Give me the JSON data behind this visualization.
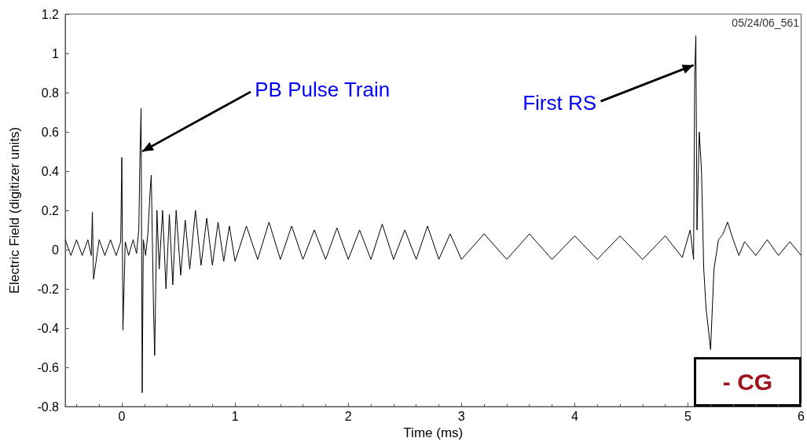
{
  "chart_data": {
    "type": "line",
    "xlabel": "Time (ms)",
    "ylabel": "Electric Field (digitizer units)",
    "x": [
      -0.5,
      -0.45,
      -0.4,
      -0.35,
      -0.3,
      -0.27,
      -0.26,
      -0.25,
      -0.2,
      -0.15,
      -0.1,
      -0.05,
      -0.01,
      0,
      0.01,
      0.03,
      0.06,
      0.1,
      0.13,
      0.15,
      0.16,
      0.17,
      0.18,
      0.19,
      0.21,
      0.23,
      0.25,
      0.26,
      0.28,
      0.29,
      0.31,
      0.33,
      0.36,
      0.39,
      0.42,
      0.45,
      0.48,
      0.52,
      0.56,
      0.6,
      0.65,
      0.7,
      0.75,
      0.8,
      0.85,
      0.9,
      0.95,
      1.0,
      1.1,
      1.2,
      1.3,
      1.4,
      1.5,
      1.6,
      1.7,
      1.8,
      1.9,
      2.0,
      2.1,
      2.2,
      2.3,
      2.4,
      2.5,
      2.6,
      2.7,
      2.8,
      2.9,
      3.0,
      3.2,
      3.4,
      3.6,
      3.8,
      4.0,
      4.2,
      4.4,
      4.6,
      4.8,
      4.95,
      5.02,
      5.05,
      5.06,
      5.07,
      5.08,
      5.1,
      5.12,
      5.14,
      5.16,
      5.18,
      5.2,
      5.23,
      5.27,
      5.31,
      5.35,
      5.4,
      5.45,
      5.5,
      5.6,
      5.7,
      5.8,
      5.9,
      6.0
    ],
    "series": [
      {
        "color": "#000000",
        "values": [
          0.05,
          -0.03,
          0.05,
          -0.03,
          0.05,
          -0.03,
          0.19,
          -0.15,
          0.05,
          -0.03,
          0.05,
          -0.03,
          0.04,
          0.47,
          -0.41,
          0.04,
          -0.03,
          0.05,
          -0.02,
          0.1,
          0.47,
          0.72,
          -0.73,
          0.05,
          -0.03,
          0.08,
          0.3,
          0.38,
          -0.3,
          -0.54,
          0.2,
          -0.1,
          0.2,
          -0.2,
          0.18,
          -0.18,
          0.2,
          -0.13,
          0.15,
          -0.1,
          0.2,
          -0.08,
          0.16,
          -0.08,
          0.14,
          -0.06,
          0.12,
          -0.06,
          0.12,
          -0.05,
          0.14,
          -0.05,
          0.12,
          -0.05,
          0.1,
          -0.05,
          0.11,
          -0.05,
          0.1,
          -0.05,
          0.13,
          -0.05,
          0.1,
          -0.05,
          0.12,
          -0.05,
          0.08,
          -0.05,
          0.08,
          -0.05,
          0.08,
          -0.05,
          0.07,
          -0.05,
          0.07,
          -0.05,
          0.07,
          -0.04,
          0.1,
          -0.05,
          0.9,
          1.09,
          0.1,
          0.6,
          0.4,
          -0.1,
          -0.3,
          -0.4,
          -0.51,
          -0.1,
          0.05,
          0.08,
          0.14,
          0.05,
          -0.03,
          0.04,
          -0.03,
          0.05,
          -0.03,
          0.04,
          -0.03
        ]
      }
    ],
    "xlim": [
      -0.5,
      6
    ],
    "xticks": [
      0,
      1,
      2,
      3,
      4,
      5,
      6
    ],
    "ylim": [
      -0.8,
      1.2
    ],
    "yticks": [
      -0.8,
      -0.6,
      -0.4,
      -0.2,
      0,
      0.2,
      0.4,
      0.6,
      0.8,
      1,
      1.2
    ],
    "grid": false,
    "marker": "none",
    "line_style": "solid",
    "annotations": [
      {
        "text": "PB Pulse Train",
        "x": 0.18,
        "y": 0.5
      },
      {
        "text": "First RS",
        "x": 5.05,
        "y": 0.94
      },
      "05/24/06_561",
      "- CG"
    ]
  }
}
